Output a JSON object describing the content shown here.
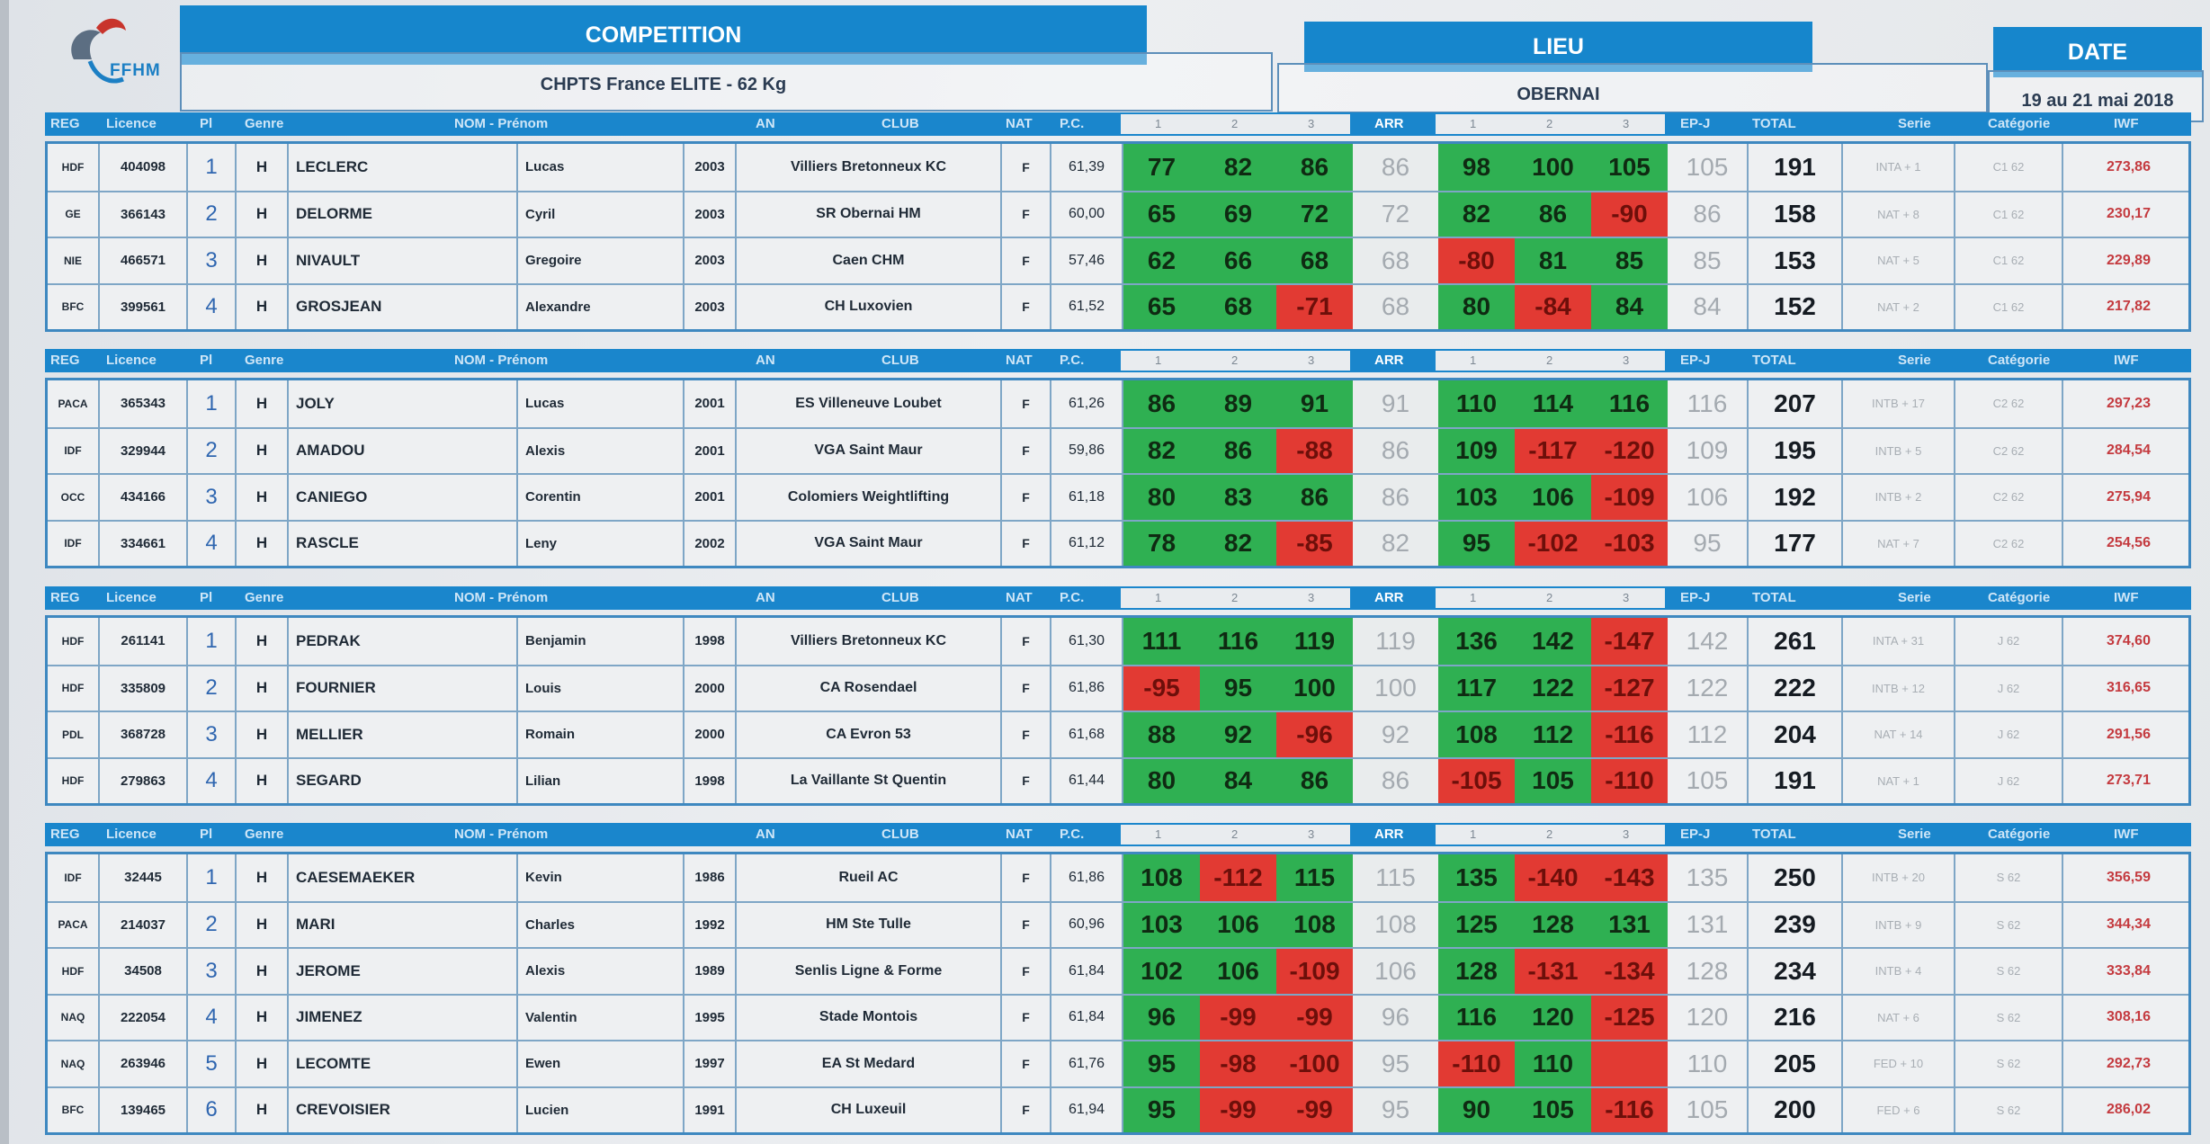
{
  "header": {
    "competition_label": "COMPETITION",
    "competition_value": "CHPTS France ELITE - 62 Kg",
    "lieu_label": "LIEU",
    "lieu_value": "OBERNAI",
    "date_label": "DATE",
    "date_value": "19 au 21 mai 2018",
    "logo_text": "FFHM"
  },
  "columns": {
    "reg": "REG",
    "licence": "Licence",
    "pl": "Pl",
    "genre": "Genre",
    "nom_prenom": "NOM - Prénom",
    "an": "AN",
    "club": "CLUB",
    "nat": "NAT",
    "pc": "P.C.",
    "att1": "1",
    "att2": "2",
    "att3": "3",
    "arr": "ARR",
    "epj": "EP-J",
    "total": "TOTAL",
    "serie": "Serie",
    "categorie": "Catégorie",
    "iwf": "IWF"
  },
  "colors": {
    "success": "#2fb052",
    "fail": "#e23a33",
    "header": "#1686cc"
  },
  "groups": [
    {
      "rows": [
        {
          "reg": "HDF",
          "licence": "404098",
          "pl": "1",
          "genre": "H",
          "nom": "LECLERC",
          "prenom": "Lucas",
          "an": "2003",
          "club": "Villiers Bretonneux KC",
          "nat": "F",
          "pc": "61,39",
          "a1": "77",
          "a2": "82",
          "a3": "86",
          "arr": "86",
          "e1": "98",
          "e2": "100",
          "e3": "105",
          "epj": "105",
          "total": "191",
          "serie": "INTA + 1",
          "cat": "C1 62",
          "iwf": "273,86",
          "s": [
            "ok",
            "ok",
            "ok",
            "ok",
            "ok",
            "ok"
          ]
        },
        {
          "reg": "GE",
          "licence": "366143",
          "pl": "2",
          "genre": "H",
          "nom": "DELORME",
          "prenom": "Cyril",
          "an": "2003",
          "club": "SR Obernai HM",
          "nat": "F",
          "pc": "60,00",
          "a1": "65",
          "a2": "69",
          "a3": "72",
          "arr": "72",
          "e1": "82",
          "e2": "86",
          "e3": "-90",
          "epj": "86",
          "total": "158",
          "serie": "NAT + 8",
          "cat": "C1 62",
          "iwf": "230,17",
          "s": [
            "ok",
            "ok",
            "ok",
            "ok",
            "ok",
            "fail"
          ]
        },
        {
          "reg": "NIE",
          "licence": "466571",
          "pl": "3",
          "genre": "H",
          "nom": "NIVAULT",
          "prenom": "Gregoire",
          "an": "2003",
          "club": "Caen CHM",
          "nat": "F",
          "pc": "57,46",
          "a1": "62",
          "a2": "66",
          "a3": "68",
          "arr": "68",
          "e1": "-80",
          "e2": "81",
          "e3": "85",
          "epj": "85",
          "total": "153",
          "serie": "NAT + 5",
          "cat": "C1 62",
          "iwf": "229,89",
          "s": [
            "ok",
            "ok",
            "ok",
            "fail",
            "ok",
            "ok"
          ]
        },
        {
          "reg": "BFC",
          "licence": "399561",
          "pl": "4",
          "genre": "H",
          "nom": "GROSJEAN",
          "prenom": "Alexandre",
          "an": "2003",
          "club": "CH Luxovien",
          "nat": "F",
          "pc": "61,52",
          "a1": "65",
          "a2": "68",
          "a3": "-71",
          "arr": "68",
          "e1": "80",
          "e2": "-84",
          "e3": "84",
          "epj": "84",
          "total": "152",
          "serie": "NAT + 2",
          "cat": "C1 62",
          "iwf": "217,82",
          "s": [
            "ok",
            "ok",
            "fail",
            "ok",
            "fail",
            "ok"
          ]
        }
      ]
    },
    {
      "rows": [
        {
          "reg": "PACA",
          "licence": "365343",
          "pl": "1",
          "genre": "H",
          "nom": "JOLY",
          "prenom": "Lucas",
          "an": "2001",
          "club": "ES Villeneuve Loubet",
          "nat": "F",
          "pc": "61,26",
          "a1": "86",
          "a2": "89",
          "a3": "91",
          "arr": "91",
          "e1": "110",
          "e2": "114",
          "e3": "116",
          "epj": "116",
          "total": "207",
          "serie": "INTB + 17",
          "cat": "C2 62",
          "iwf": "297,23",
          "s": [
            "ok",
            "ok",
            "ok",
            "ok",
            "ok",
            "ok"
          ]
        },
        {
          "reg": "IDF",
          "licence": "329944",
          "pl": "2",
          "genre": "H",
          "nom": "AMADOU",
          "prenom": "Alexis",
          "an": "2001",
          "club": "VGA Saint Maur",
          "nat": "F",
          "pc": "59,86",
          "a1": "82",
          "a2": "86",
          "a3": "-88",
          "arr": "86",
          "e1": "109",
          "e2": "-117",
          "e3": "-120",
          "epj": "109",
          "total": "195",
          "serie": "INTB + 5",
          "cat": "C2 62",
          "iwf": "284,54",
          "s": [
            "ok",
            "ok",
            "fail",
            "ok",
            "fail",
            "fail"
          ]
        },
        {
          "reg": "OCC",
          "licence": "434166",
          "pl": "3",
          "genre": "H",
          "nom": "CANIEGO",
          "prenom": "Corentin",
          "an": "2001",
          "club": "Colomiers Weightlifting",
          "nat": "F",
          "pc": "61,18",
          "a1": "80",
          "a2": "83",
          "a3": "86",
          "arr": "86",
          "e1": "103",
          "e2": "106",
          "e3": "-109",
          "epj": "106",
          "total": "192",
          "serie": "INTB + 2",
          "cat": "C2 62",
          "iwf": "275,94",
          "s": [
            "ok",
            "ok",
            "ok",
            "ok",
            "ok",
            "fail"
          ]
        },
        {
          "reg": "IDF",
          "licence": "334661",
          "pl": "4",
          "genre": "H",
          "nom": "RASCLE",
          "prenom": "Leny",
          "an": "2002",
          "club": "VGA Saint Maur",
          "nat": "F",
          "pc": "61,12",
          "a1": "78",
          "a2": "82",
          "a3": "-85",
          "arr": "82",
          "e1": "95",
          "e2": "-102",
          "e3": "-103",
          "epj": "95",
          "total": "177",
          "serie": "NAT + 7",
          "cat": "C2 62",
          "iwf": "254,56",
          "s": [
            "ok",
            "ok",
            "fail",
            "ok",
            "fail",
            "fail"
          ]
        }
      ]
    },
    {
      "rows": [
        {
          "reg": "HDF",
          "licence": "261141",
          "pl": "1",
          "genre": "H",
          "nom": "PEDRAK",
          "prenom": "Benjamin",
          "an": "1998",
          "club": "Villiers Bretonneux KC",
          "nat": "F",
          "pc": "61,30",
          "a1": "111",
          "a2": "116",
          "a3": "119",
          "arr": "119",
          "e1": "136",
          "e2": "142",
          "e3": "-147",
          "epj": "142",
          "total": "261",
          "serie": "INTA + 31",
          "cat": "J 62",
          "iwf": "374,60",
          "s": [
            "ok",
            "ok",
            "ok",
            "ok",
            "ok",
            "fail"
          ]
        },
        {
          "reg": "HDF",
          "licence": "335809",
          "pl": "2",
          "genre": "H",
          "nom": "FOURNIER",
          "prenom": "Louis",
          "an": "2000",
          "club": "CA Rosendael",
          "nat": "F",
          "pc": "61,86",
          "a1": "-95",
          "a2": "95",
          "a3": "100",
          "arr": "100",
          "e1": "117",
          "e2": "122",
          "e3": "-127",
          "epj": "122",
          "total": "222",
          "serie": "INTB + 12",
          "cat": "J 62",
          "iwf": "316,65",
          "s": [
            "fail",
            "ok",
            "ok",
            "ok",
            "ok",
            "fail"
          ]
        },
        {
          "reg": "PDL",
          "licence": "368728",
          "pl": "3",
          "genre": "H",
          "nom": "MELLIER",
          "prenom": "Romain",
          "an": "2000",
          "club": "CA Evron 53",
          "nat": "F",
          "pc": "61,68",
          "a1": "88",
          "a2": "92",
          "a3": "-96",
          "arr": "92",
          "e1": "108",
          "e2": "112",
          "e3": "-116",
          "epj": "112",
          "total": "204",
          "serie": "NAT + 14",
          "cat": "J 62",
          "iwf": "291,56",
          "s": [
            "ok",
            "ok",
            "fail",
            "ok",
            "ok",
            "fail"
          ]
        },
        {
          "reg": "HDF",
          "licence": "279863",
          "pl": "4",
          "genre": "H",
          "nom": "SEGARD",
          "prenom": "Lilian",
          "an": "1998",
          "club": "La Vaillante St Quentin",
          "nat": "F",
          "pc": "61,44",
          "a1": "80",
          "a2": "84",
          "a3": "86",
          "arr": "86",
          "e1": "-105",
          "e2": "105",
          "e3": "-110",
          "epj": "105",
          "total": "191",
          "serie": "NAT + 1",
          "cat": "J 62",
          "iwf": "273,71",
          "s": [
            "ok",
            "ok",
            "ok",
            "fail",
            "ok",
            "fail"
          ]
        }
      ]
    },
    {
      "rows": [
        {
          "reg": "IDF",
          "licence": "32445",
          "pl": "1",
          "genre": "H",
          "nom": "CAESEMAEKER",
          "prenom": "Kevin",
          "an": "1986",
          "club": "Rueil AC",
          "nat": "F",
          "pc": "61,86",
          "a1": "108",
          "a2": "-112",
          "a3": "115",
          "arr": "115",
          "e1": "135",
          "e2": "-140",
          "e3": "-143",
          "epj": "135",
          "total": "250",
          "serie": "INTB + 20",
          "cat": "S 62",
          "iwf": "356,59",
          "s": [
            "ok",
            "fail",
            "ok",
            "ok",
            "fail",
            "fail"
          ]
        },
        {
          "reg": "PACA",
          "licence": "214037",
          "pl": "2",
          "genre": "H",
          "nom": "MARI",
          "prenom": "Charles",
          "an": "1992",
          "club": "HM Ste Tulle",
          "nat": "F",
          "pc": "60,96",
          "a1": "103",
          "a2": "106",
          "a3": "108",
          "arr": "108",
          "e1": "125",
          "e2": "128",
          "e3": "131",
          "epj": "131",
          "total": "239",
          "serie": "INTB + 9",
          "cat": "S 62",
          "iwf": "344,34",
          "s": [
            "ok",
            "ok",
            "ok",
            "ok",
            "ok",
            "ok"
          ]
        },
        {
          "reg": "HDF",
          "licence": "34508",
          "pl": "3",
          "genre": "H",
          "nom": "JEROME",
          "prenom": "Alexis",
          "an": "1989",
          "club": "Senlis Ligne & Forme",
          "nat": "F",
          "pc": "61,84",
          "a1": "102",
          "a2": "106",
          "a3": "-109",
          "arr": "106",
          "e1": "128",
          "e2": "-131",
          "e3": "-134",
          "epj": "128",
          "total": "234",
          "serie": "INTB + 4",
          "cat": "S 62",
          "iwf": "333,84",
          "s": [
            "ok",
            "ok",
            "fail",
            "ok",
            "fail",
            "fail"
          ]
        },
        {
          "reg": "NAQ",
          "licence": "222054",
          "pl": "4",
          "genre": "H",
          "nom": "JIMENEZ",
          "prenom": "Valentin",
          "an": "1995",
          "club": "Stade Montois",
          "nat": "F",
          "pc": "61,84",
          "a1": "96",
          "a2": "-99",
          "a3": "-99",
          "arr": "96",
          "e1": "116",
          "e2": "120",
          "e3": "-125",
          "epj": "120",
          "total": "216",
          "serie": "NAT + 6",
          "cat": "S 62",
          "iwf": "308,16",
          "s": [
            "ok",
            "fail",
            "fail",
            "ok",
            "ok",
            "fail"
          ]
        },
        {
          "reg": "NAQ",
          "licence": "263946",
          "pl": "5",
          "genre": "H",
          "nom": "LECOMTE",
          "prenom": "Ewen",
          "an": "1997",
          "club": "EA St Medard",
          "nat": "F",
          "pc": "61,76",
          "a1": "95",
          "a2": "-98",
          "a3": "-100",
          "arr": "95",
          "e1": "-110",
          "e2": "110",
          "e3": "",
          "epj": "110",
          "total": "205",
          "serie": "FED + 10",
          "cat": "S 62",
          "iwf": "292,73",
          "s": [
            "ok",
            "fail",
            "fail",
            "fail",
            "ok",
            "fail"
          ]
        },
        {
          "reg": "BFC",
          "licence": "139465",
          "pl": "6",
          "genre": "H",
          "nom": "CREVOISIER",
          "prenom": "Lucien",
          "an": "1991",
          "club": "CH Luxeuil",
          "nat": "F",
          "pc": "61,94",
          "a1": "95",
          "a2": "-99",
          "a3": "-99",
          "arr": "95",
          "e1": "90",
          "e2": "105",
          "e3": "-116",
          "epj": "105",
          "total": "200",
          "serie": "FED + 6",
          "cat": "S 62",
          "iwf": "286,02",
          "s": [
            "ok",
            "fail",
            "fail",
            "ok",
            "ok",
            "fail"
          ]
        }
      ]
    }
  ]
}
